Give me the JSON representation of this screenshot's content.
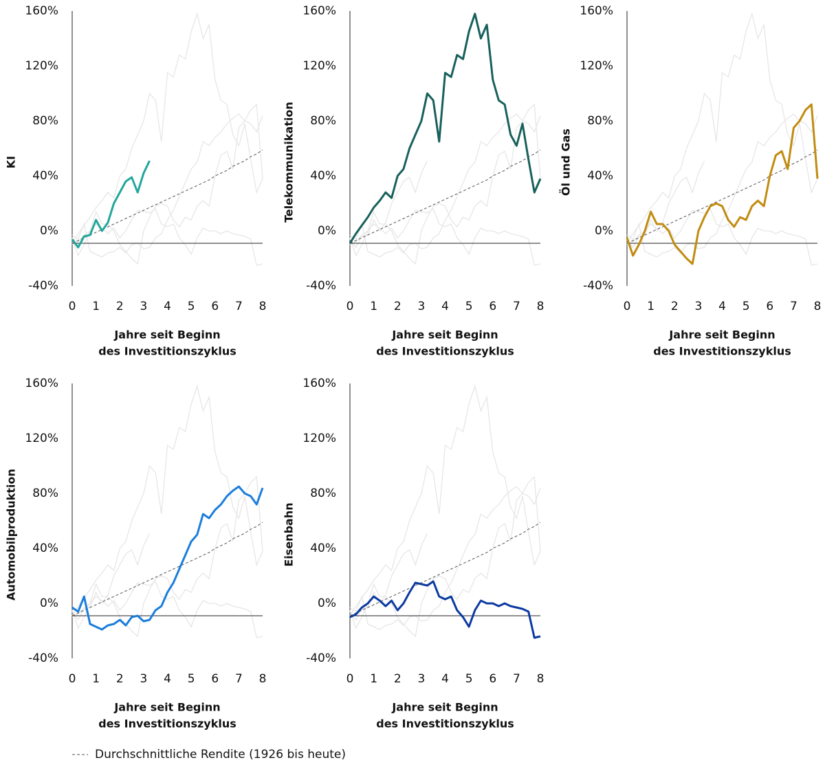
{
  "chart_data": {
    "type": "line",
    "x": [
      0,
      0.25,
      0.5,
      0.75,
      1,
      1.25,
      1.5,
      1.75,
      2,
      2.25,
      2.5,
      2.75,
      3,
      3.25,
      3.5,
      3.75,
      4,
      4.25,
      4.5,
      4.75,
      5,
      5.25,
      5.5,
      5.75,
      6,
      6.25,
      6.5,
      6.75,
      7,
      7.25,
      7.5,
      7.75,
      8
    ],
    "xlim": [
      0,
      8
    ],
    "xticks": [
      0,
      1,
      2,
      3,
      4,
      5,
      6,
      7,
      8
    ],
    "ylim": [
      -40,
      160
    ],
    "yticks": [
      {
        "value": -40,
        "label": "-40%"
      },
      {
        "value": 0,
        "label": "0%"
      },
      {
        "value": 40,
        "label": "40%"
      },
      {
        "value": 80,
        "label": "80%"
      },
      {
        "value": 120,
        "label": "120%"
      },
      {
        "value": 160,
        "label": "160%"
      }
    ],
    "xlabel": [
      "Jahre seit Beginn",
      "des Investitionszyklus"
    ],
    "background_color": "#e6e6e6",
    "series": [
      {
        "name": "KI",
        "color": "#23a69b",
        "values": [
          -6,
          -12,
          -4,
          -3,
          8,
          0,
          6,
          20,
          28,
          36,
          39,
          28,
          42,
          51,
          null,
          null,
          null,
          null,
          null,
          null,
          null,
          null,
          null,
          null,
          null,
          null,
          null,
          null,
          null,
          null,
          null,
          null,
          null
        ]
      },
      {
        "name": "Telekommunikation",
        "color": "#17605b",
        "values": [
          -9,
          -2,
          4,
          10,
          17,
          22,
          28,
          24,
          40,
          45,
          60,
          70,
          80,
          100,
          95,
          65,
          115,
          112,
          128,
          125,
          145,
          158,
          140,
          150,
          110,
          95,
          92,
          70,
          62,
          78,
          52,
          28,
          38
        ]
      },
      {
        "name": "Öl und Gas",
        "color": "#c18b0f",
        "values": [
          -5,
          -18,
          -10,
          0,
          14,
          5,
          5,
          0,
          -10,
          -15,
          -20,
          -24,
          0,
          10,
          18,
          20,
          18,
          8,
          3,
          10,
          8,
          18,
          22,
          18,
          40,
          55,
          58,
          45,
          75,
          80,
          88,
          92,
          38
        ]
      },
      {
        "name": "Automobilproduktion",
        "color": "#1a7ddc",
        "values": [
          -3,
          -6,
          5,
          -15,
          -17,
          -19,
          -16,
          -15,
          -12,
          -16,
          -10,
          -9,
          -13,
          -12,
          -5,
          -2,
          8,
          15,
          25,
          35,
          45,
          50,
          65,
          62,
          68,
          72,
          78,
          82,
          85,
          80,
          78,
          72,
          84
        ]
      },
      {
        "name": "Eisenbahn",
        "color": "#0b3aa0",
        "values": [
          -10,
          -8,
          -3,
          0,
          5,
          2,
          -2,
          2,
          -5,
          0,
          8,
          15,
          14,
          13,
          16,
          5,
          3,
          5,
          -5,
          -10,
          -17,
          -5,
          2,
          0,
          0,
          -2,
          0,
          -2,
          -3,
          -4,
          -6,
          -25,
          -24
        ]
      }
    ],
    "average": {
      "name": "Durchschnittliche Rendite (1926 bis heute)",
      "color": "#555555",
      "style": "dashed",
      "values": [
        -9,
        -7,
        -5,
        -3,
        -1,
        1,
        3,
        5,
        7,
        9,
        11,
        13,
        15,
        17,
        19,
        21,
        23,
        25,
        27,
        29,
        31,
        33,
        35,
        37,
        40,
        42,
        44,
        47,
        49,
        51,
        54,
        56,
        59
      ]
    }
  }
}
